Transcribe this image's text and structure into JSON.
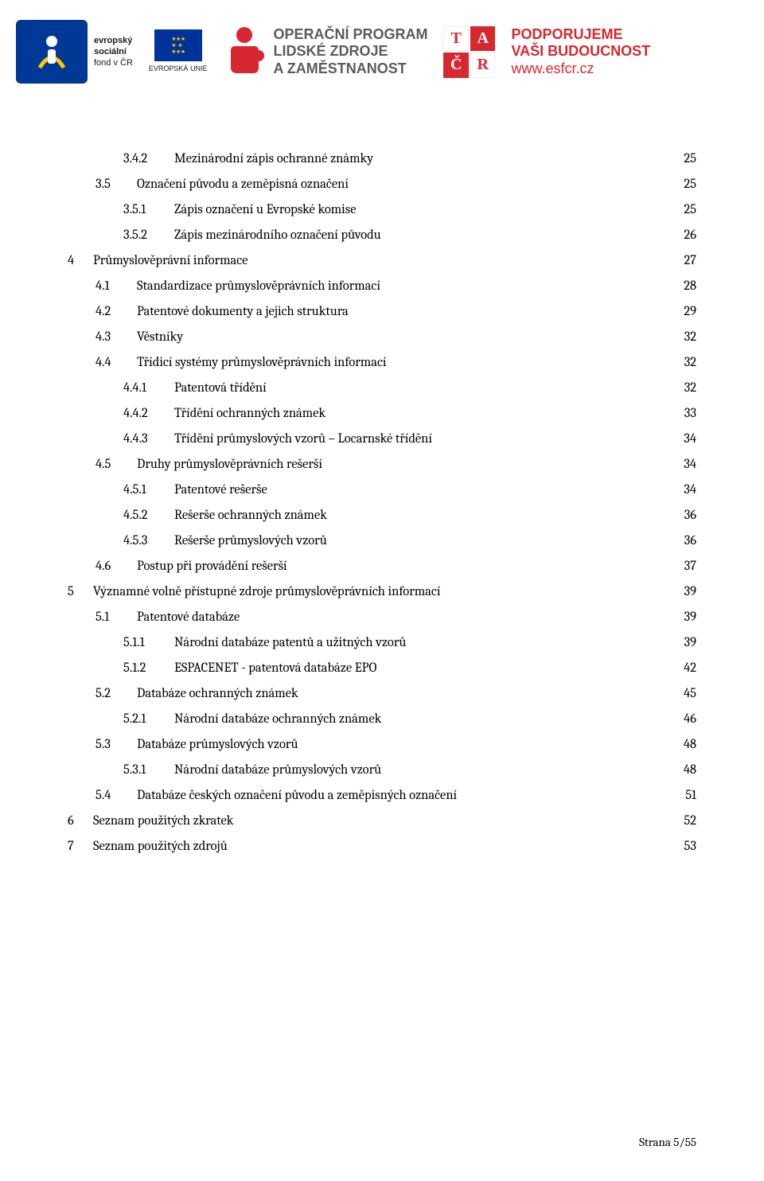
{
  "header": {
    "esf_text_line1": "evropský",
    "esf_text_line2": "sociální",
    "esf_text_line3": "fond v ČR",
    "eu_label": "EVROPSKÁ UNIE",
    "op_line1": "OPERAČNÍ PROGRAM",
    "op_line2": "LIDSKÉ ZDROJE",
    "op_line3": "A ZAMĚSTNANOST",
    "tacr": {
      "t": "T",
      "a": "A",
      "c": "Č",
      "r": "R"
    },
    "support_line1": "PODPORUJEME",
    "support_line2": "VAŠI BUDOUCNOST",
    "support_line3": "www.esfcr.cz",
    "colors": {
      "esf_blue": "#003896",
      "eu_blue": "#003399",
      "eu_gold": "#ffcc00",
      "grey": "#5b5b5b",
      "red": "#d7282f"
    }
  },
  "toc": [
    {
      "lvl": 3,
      "num": "3.4.2",
      "title": "Mezinárodní zápis ochranné známky",
      "page": "25"
    },
    {
      "lvl": 2,
      "num": "3.5",
      "title": "Označení původu a zeměpisná označení",
      "page": "25"
    },
    {
      "lvl": 3,
      "num": "3.5.1",
      "title": "Zápis označení u Evropské komise",
      "page": "25"
    },
    {
      "lvl": 3,
      "num": "3.5.2",
      "title": "Zápis mezinárodního označení původu",
      "page": "26"
    },
    {
      "lvl": 1,
      "num": "4",
      "title": "Průmyslověprávní informace",
      "page": "27"
    },
    {
      "lvl": 2,
      "num": "4.1",
      "title": "Standardizace průmyslověprávních informací",
      "page": "28"
    },
    {
      "lvl": 2,
      "num": "4.2",
      "title": "Patentové dokumenty a jejich struktura",
      "page": "29"
    },
    {
      "lvl": 2,
      "num": "4.3",
      "title": "Věstníky",
      "page": "32"
    },
    {
      "lvl": 2,
      "num": "4.4",
      "title": "Třídicí systémy průmyslověprávních informací",
      "page": "32"
    },
    {
      "lvl": 3,
      "num": "4.4.1",
      "title": "Patentová třídění",
      "page": "32"
    },
    {
      "lvl": 3,
      "num": "4.4.2",
      "title": "Třídění ochranných známek",
      "page": "33"
    },
    {
      "lvl": 3,
      "num": "4.4.3",
      "title": "Třídění průmyslových vzorů – Locarnské třídění",
      "page": "34"
    },
    {
      "lvl": 2,
      "num": "4.5",
      "title": "Druhy průmyslověprávních rešerší",
      "page": "34"
    },
    {
      "lvl": 3,
      "num": "4.5.1",
      "title": "Patentové rešerše",
      "page": "34"
    },
    {
      "lvl": 3,
      "num": "4.5.2",
      "title": "Rešerše ochranných známek",
      "page": "36"
    },
    {
      "lvl": 3,
      "num": "4.5.3",
      "title": "Rešerše průmyslových vzorů",
      "page": "36"
    },
    {
      "lvl": 2,
      "num": "4.6",
      "title": "Postup při provádění rešerší",
      "page": "37"
    },
    {
      "lvl": 1,
      "num": "5",
      "title": "Významné volně přístupné zdroje průmyslověprávních informací",
      "page": "39"
    },
    {
      "lvl": 2,
      "num": "5.1",
      "title": "Patentové databáze",
      "page": "39"
    },
    {
      "lvl": 3,
      "num": "5.1.1",
      "title": "Národní databáze patentů a užitných vzorů",
      "page": "39"
    },
    {
      "lvl": 3,
      "num": "5.1.2",
      "title": "ESPACENET - patentová databáze EPO",
      "page": "42"
    },
    {
      "lvl": 2,
      "num": "5.2",
      "title": "Databáze ochranných známek",
      "page": "45"
    },
    {
      "lvl": 3,
      "num": "5.2.1",
      "title": "Národní databáze ochranných známek",
      "page": "46"
    },
    {
      "lvl": 2,
      "num": "5.3",
      "title": "Databáze průmyslových vzorů",
      "page": "48"
    },
    {
      "lvl": 3,
      "num": "5.3.1",
      "title": "Národní databáze průmyslových vzorů",
      "page": "48"
    },
    {
      "lvl": 2,
      "num": "5.4",
      "title": "Databáze českých označení původu a zeměpisných označení",
      "page": "51"
    },
    {
      "lvl": 1,
      "num": "6",
      "title": "Seznam použitých zkratek",
      "page": "52"
    },
    {
      "lvl": 1,
      "num": "7",
      "title": "Seznam použitých zdrojů",
      "page": "53"
    }
  ],
  "footer": {
    "text": "Strana 5/55"
  }
}
